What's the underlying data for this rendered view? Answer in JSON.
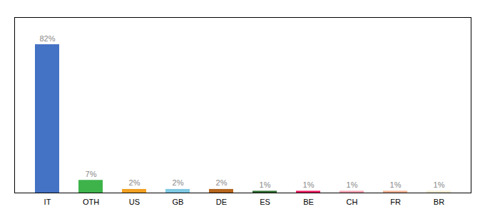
{
  "chart_data": {
    "type": "bar",
    "categories": [
      "IT",
      "OTH",
      "US",
      "GB",
      "DE",
      "ES",
      "BE",
      "CH",
      "FR",
      "BR"
    ],
    "values": [
      82,
      7,
      2,
      2,
      2,
      1,
      1,
      1,
      1,
      1
    ],
    "value_labels": [
      "82%",
      "7%",
      "2%",
      "2%",
      "2%",
      "1%",
      "1%",
      "1%",
      "1%",
      "1%"
    ],
    "colors": [
      "#4472c4",
      "#3db34a",
      "#f0a020",
      "#7ec8e3",
      "#b5651d",
      "#2e6b2e",
      "#e8175d",
      "#f4a0b0",
      "#f0b090",
      "#f0ead0"
    ],
    "ylim": [
      0,
      97
    ],
    "data_labels": true,
    "tick_labels": "x",
    "grid": false
  }
}
